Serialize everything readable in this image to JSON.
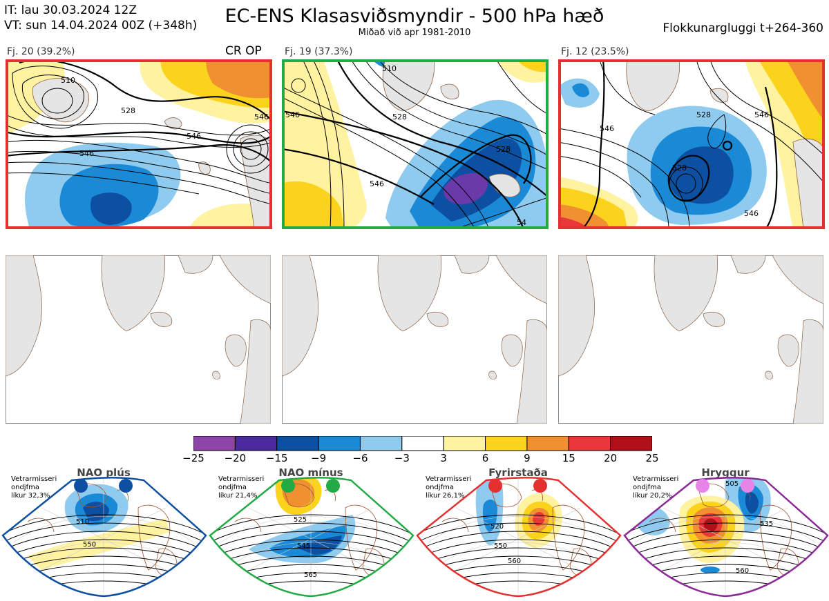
{
  "header": {
    "it": "IT: lau 30.03.2024 12Z",
    "vt": "VT: sun 14.04.2024 00Z  (+348h)",
    "title": "EC-ENS Klasasviðsmyndir - 500 hPa hæð",
    "subtitle": "Miðað við apr 1981-2010",
    "window": "Flokkunargluggi t+264-360"
  },
  "clusters": [
    {
      "label": "Fj. 20 (39.2%)",
      "border": "#e53030",
      "op": "CR OP",
      "contours": [
        "510",
        "528",
        "546",
        "546",
        "546"
      ]
    },
    {
      "label": "Fj. 19 (37.3%)",
      "border": "#22aa44",
      "contours": [
        "510",
        "528",
        "546",
        "546",
        "528",
        "54"
      ]
    },
    {
      "label": "Fj. 12 (23.5%)",
      "border": "#e53030",
      "contours": [
        "528",
        "546",
        "546",
        "528",
        "546"
      ]
    }
  ],
  "colorbar": {
    "ticks": [
      "−25",
      "−20",
      "−15",
      "−9",
      "−6",
      "−3",
      "3",
      "6",
      "9",
      "15",
      "20",
      "25"
    ],
    "colors": [
      "#8e44a8",
      "#4a2a9c",
      "#0d4fa0",
      "#1a8ad6",
      "#8ecbef",
      "#ffffff",
      "#fff2a0",
      "#fbd21c",
      "#f09030",
      "#e8383a",
      "#b01018"
    ]
  },
  "regimes": [
    {
      "title": "NAO plús",
      "winter": [
        "Vetrarmisseri",
        "ondjfma",
        "líkur 32,3%"
      ],
      "color": "#0d4fa0",
      "dot": "#0d4fa0",
      "contours": [
        "510",
        "550"
      ]
    },
    {
      "title": "NAO mínus",
      "winter": [
        "Vetrarmisseri",
        "ondjfma",
        "líkur 21,4%"
      ],
      "color": "#22aa44",
      "dot": "#22aa44",
      "contours": [
        "525",
        "545",
        "565"
      ]
    },
    {
      "title": "Fyrirstaða",
      "winter": [
        "Vetrarmisseri",
        "ondjfma",
        "líkur 26,1%"
      ],
      "color": "#e53030",
      "dot": "#e53030",
      "contours": [
        "520",
        "550",
        "560"
      ]
    },
    {
      "title": "Hryggur",
      "winter": [
        "Vetrarmisseri",
        "ondjfma",
        "líkur 20,2%"
      ],
      "color": "#8a2a96",
      "dot": "#e884e8",
      "contours": [
        "505",
        "535",
        "560"
      ]
    }
  ]
}
